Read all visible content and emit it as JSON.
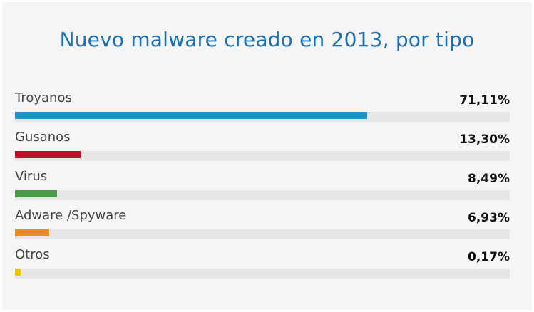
{
  "chart_data": {
    "type": "bar",
    "orientation": "horizontal",
    "title": "Nuevo malware creado en 2013, por tipo",
    "xlim": [
      0,
      100
    ],
    "categories": [
      "Troyanos",
      "Gusanos",
      "Virus",
      "Adware /Spyware",
      "Otros"
    ],
    "values": [
      71.11,
      13.3,
      8.49,
      6.93,
      0.17
    ],
    "value_labels": [
      "71,11%",
      "13,30%",
      "8,49%",
      "6,93%",
      "0,17%"
    ],
    "colors": [
      "#1a8fd0",
      "#c3102a",
      "#4a9a48",
      "#f08a1c",
      "#f2c500"
    ],
    "grid": false,
    "legend": "none"
  }
}
